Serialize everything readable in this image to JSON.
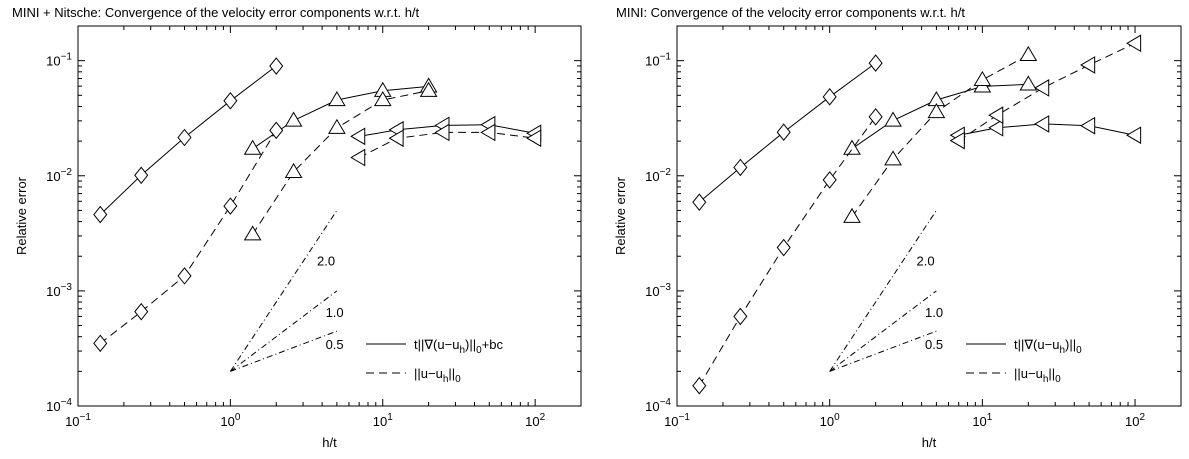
{
  "chart_data": [
    {
      "type": "line",
      "title": "MINI + Nitsche: Convergence of the velocity error components w.r.t. h/t",
      "xlabel": "h/t",
      "ylabel": "Relative error",
      "xscale": "log",
      "yscale": "log",
      "xlim": [
        0.1,
        200
      ],
      "ylim": [
        0.0001,
        0.2
      ],
      "x_ticks": [
        "10^-1",
        "10^0",
        "10^1",
        "10^2"
      ],
      "y_ticks": [
        "10^-4",
        "10^-3",
        "10^-2",
        "10^-1"
      ],
      "grid": false,
      "legend_position": "bottom-right",
      "legend": [
        "t||∇(u−u_h)||_0+bc",
        "||u−u_h||_0"
      ],
      "series": [
        {
          "legend_index": 0,
          "line": "solid",
          "marker": "diamond",
          "x": [
            0.14,
            0.26,
            0.5,
            1.0,
            2.0
          ],
          "y": [
            0.0046,
            0.0101,
            0.0215,
            0.0448,
            0.0898
          ]
        },
        {
          "legend_index": 0,
          "line": "solid",
          "marker": "triangle-up",
          "x": [
            1.4,
            2.6,
            5.0,
            10,
            20
          ],
          "y": [
            0.0172,
            0.0302,
            0.0455,
            0.0548,
            0.0598
          ]
        },
        {
          "legend_index": 0,
          "line": "solid",
          "marker": "triangle-left",
          "x": [
            7,
            12.5,
            25,
            50,
            100
          ],
          "y": [
            0.022,
            0.0251,
            0.0274,
            0.0278,
            0.0234
          ]
        },
        {
          "legend_index": 1,
          "line": "dashed",
          "marker": "diamond",
          "x": [
            0.14,
            0.26,
            0.5,
            1.0,
            2.0
          ],
          "y": [
            0.00035,
            0.00066,
            0.00135,
            0.00545,
            0.0248
          ]
        },
        {
          "legend_index": 1,
          "line": "dashed",
          "marker": "triangle-up",
          "x": [
            1.4,
            2.6,
            5.0,
            10,
            20
          ],
          "y": [
            0.0031,
            0.0108,
            0.0261,
            0.0455,
            0.0548
          ]
        },
        {
          "legend_index": 1,
          "line": "dashed",
          "marker": "triangle-left",
          "x": [
            7,
            12.5,
            25,
            50,
            100
          ],
          "y": [
            0.0144,
            0.0212,
            0.0238,
            0.0238,
            0.0212
          ]
        }
      ],
      "slope_triangle": {
        "origin": [
          1.0,
          0.0002
        ],
        "x_end": 5.0,
        "slopes": [
          2.0,
          1.0,
          0.5
        ],
        "labels": [
          "2.0",
          "1.0",
          "0.5"
        ]
      }
    },
    {
      "type": "line",
      "title": "MINI: Convergence of the velocity error components w.r.t. h/t",
      "xlabel": "h/t",
      "ylabel": "Relative error",
      "xscale": "log",
      "yscale": "log",
      "xlim": [
        0.1,
        200
      ],
      "ylim": [
        0.0001,
        0.2
      ],
      "x_ticks": [
        "10^-1",
        "10^0",
        "10^1",
        "10^2"
      ],
      "y_ticks": [
        "10^-4",
        "10^-3",
        "10^-2",
        "10^-1"
      ],
      "grid": false,
      "legend_position": "bottom-right",
      "legend": [
        "t||∇(u−u_h)||_0",
        "||u−u_h||_0"
      ],
      "series": [
        {
          "legend_index": 0,
          "line": "solid",
          "marker": "diamond",
          "x": [
            0.14,
            0.26,
            0.5,
            1.0,
            2.0
          ],
          "y": [
            0.0059,
            0.0118,
            0.0239,
            0.0485,
            0.0952
          ]
        },
        {
          "legend_index": 0,
          "line": "solid",
          "marker": "triangle-up",
          "x": [
            1.4,
            2.6,
            5.0,
            10,
            20
          ],
          "y": [
            0.0172,
            0.0302,
            0.0455,
            0.0598,
            0.0622
          ]
        },
        {
          "legend_index": 0,
          "line": "solid",
          "marker": "triangle-left",
          "x": [
            7,
            12.5,
            25,
            50,
            100
          ],
          "y": [
            0.0225,
            0.0261,
            0.0282,
            0.0272,
            0.0225
          ]
        },
        {
          "legend_index": 1,
          "line": "dashed",
          "marker": "diamond",
          "x": [
            0.14,
            0.26,
            0.5,
            1.0,
            2.0
          ],
          "y": [
            0.00015,
            0.0006,
            0.00238,
            0.0092,
            0.0325
          ]
        },
        {
          "legend_index": 1,
          "line": "dashed",
          "marker": "triangle-up",
          "x": [
            1.4,
            2.6,
            5.0,
            10,
            20
          ],
          "y": [
            0.0044,
            0.0139,
            0.0358,
            0.0681,
            0.1122
          ]
        },
        {
          "legend_index": 1,
          "line": "dashed",
          "marker": "triangle-left",
          "x": [
            7,
            12.5,
            25,
            50,
            100
          ],
          "y": [
            0.0202,
            0.0336,
            0.058,
            0.0917,
            0.1415
          ]
        }
      ],
      "slope_triangle": {
        "origin": [
          1.0,
          0.0002
        ],
        "x_end": 5.0,
        "slopes": [
          2.0,
          1.0,
          0.5
        ],
        "labels": [
          "2.0",
          "1.0",
          "0.5"
        ]
      }
    }
  ]
}
